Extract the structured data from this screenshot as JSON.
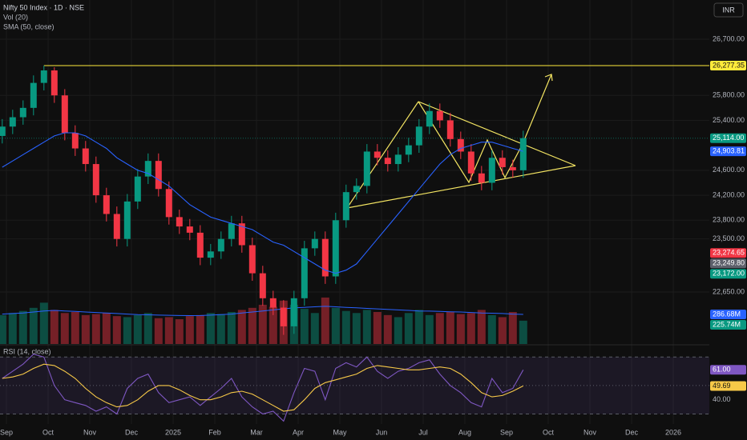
{
  "chart_data": [
    {
      "type": "candlestick",
      "title": "Nifty 50 Index · 1D · NSE",
      "currency": "INR",
      "x": [
        -0.1,
        0.15,
        0.4,
        0.65,
        0.9,
        1.15,
        1.4,
        1.65,
        1.9,
        2.15,
        2.4,
        2.65,
        2.9,
        3.15,
        3.4,
        3.65,
        3.9,
        4.15,
        4.4,
        4.65,
        4.9,
        5.15,
        5.4,
        5.65,
        5.9,
        6.15,
        6.4,
        6.65,
        6.9,
        7.15,
        7.4,
        7.65,
        7.9,
        8.15,
        8.4,
        8.65,
        8.9,
        9.15,
        9.4,
        9.65,
        9.9,
        10.15,
        10.4,
        10.65,
        10.9,
        11.15,
        11.4,
        11.65,
        11.9,
        12.15,
        12.4
      ],
      "open": [
        25150,
        25300,
        25450,
        25600,
        26000,
        26200,
        25800,
        25200,
        24950,
        24700,
        24200,
        23900,
        23500,
        24100,
        24500,
        24750,
        24300,
        23850,
        23700,
        23600,
        23200,
        23300,
        23500,
        23750,
        23400,
        22950,
        22550,
        22400,
        22100,
        22550,
        23350,
        23500,
        22900,
        23800,
        24250,
        24350,
        24900,
        24800,
        24700,
        24850,
        25000,
        25300,
        25550,
        25400,
        25100,
        24900,
        24550,
        24400,
        24800,
        24650,
        24600
      ],
      "high": [
        25420,
        25570,
        25720,
        26120,
        26277,
        26250,
        25900,
        25320,
        25070,
        24820,
        24320,
        24020,
        24220,
        24620,
        24870,
        24870,
        24420,
        23970,
        23820,
        23720,
        23420,
        23620,
        23870,
        23870,
        23520,
        23070,
        22670,
        22520,
        22670,
        23470,
        23620,
        23620,
        23920,
        24370,
        24470,
        25020,
        25020,
        24920,
        24970,
        25120,
        25420,
        25670,
        25670,
        25520,
        25220,
        25020,
        24670,
        24920,
        24920,
        24770,
        25234
      ],
      "low": [
        25030,
        25180,
        25330,
        25480,
        25880,
        25680,
        25080,
        24830,
        24580,
        24080,
        23780,
        23380,
        23380,
        23980,
        24380,
        24180,
        23730,
        23580,
        23480,
        23080,
        23080,
        23180,
        23380,
        23280,
        22830,
        22430,
        22280,
        21964,
        21980,
        22430,
        23230,
        22780,
        22780,
        23680,
        24130,
        24230,
        24680,
        24580,
        24580,
        24730,
        24880,
        25180,
        25280,
        24980,
        24780,
        24430,
        24280,
        24280,
        24530,
        24480,
        24480
      ],
      "close": [
        25300,
        25450,
        25600,
        26000,
        26200,
        25800,
        25200,
        24950,
        24700,
        24200,
        23900,
        23500,
        24100,
        24500,
        24750,
        24300,
        23850,
        23700,
        23600,
        23200,
        23300,
        23500,
        23750,
        23400,
        22950,
        22550,
        22400,
        22100,
        22550,
        23350,
        23500,
        22900,
        23800,
        24250,
        24350,
        24900,
        24800,
        24700,
        24850,
        25000,
        25300,
        25550,
        25400,
        25100,
        24900,
        24550,
        24400,
        24800,
        24650,
        24600,
        25114
      ],
      "up_color": "#089981",
      "down_color": "#f23645",
      "ylim": [
        21817,
        27328
      ],
      "yticks": [
        {
          "value": 26700,
          "label": "26,700.00"
        },
        {
          "value": 25800,
          "label": "25,800.00"
        },
        {
          "value": 25400,
          "label": "25,400.00"
        },
        {
          "value": 24600,
          "label": "24,600.00"
        },
        {
          "value": 24200,
          "label": "24,200.00"
        },
        {
          "value": 23800,
          "label": "23,800.00"
        },
        {
          "value": 23500,
          "label": "23,500.00"
        },
        {
          "value": 22650,
          "label": "22,650.00"
        }
      ],
      "xlim": [
        -0.154,
        16.865
      ],
      "xticks": [
        {
          "value": 0,
          "label": "Sep"
        },
        {
          "value": 1,
          "label": "Oct"
        },
        {
          "value": 2,
          "label": "Nov"
        },
        {
          "value": 3,
          "label": "Dec"
        },
        {
          "value": 4,
          "label": "2025"
        },
        {
          "value": 5,
          "label": "Feb"
        },
        {
          "value": 6,
          "label": "Mar"
        },
        {
          "value": 7,
          "label": "Apr"
        },
        {
          "value": 8,
          "label": "May"
        },
        {
          "value": 9,
          "label": "Jun"
        },
        {
          "value": 10,
          "label": "Jul"
        },
        {
          "value": 11,
          "label": "Aug"
        },
        {
          "value": 12,
          "label": "Sep"
        },
        {
          "value": 13,
          "label": "Oct"
        },
        {
          "value": 14,
          "label": "Nov"
        },
        {
          "value": 15,
          "label": "Dec"
        },
        {
          "value": 16,
          "label": "2026"
        }
      ],
      "grid": true,
      "overlays": [
        {
          "name": "SMA (50, close)",
          "color": "#2962ff",
          "values": [
            24650,
            24750,
            24850,
            24950,
            25050,
            25150,
            25200,
            25200,
            25150,
            25050,
            24950,
            24800,
            24700,
            24600,
            24550,
            24450,
            24350,
            24200,
            24050,
            23950,
            23850,
            23800,
            23750,
            23700,
            23650,
            23550,
            23450,
            23400,
            23300,
            23200,
            23100,
            23000,
            22950,
            23000,
            23100,
            23300,
            23500,
            23700,
            23900,
            24100,
            24300,
            24500,
            24700,
            24850,
            24950,
            25000,
            25050,
            25050,
            25000,
            24950,
            24903.81
          ]
        }
      ],
      "volume": {
        "name": "Vol (20)",
        "y3lim": [
          0,
          1100
        ],
        "values": [
          280,
          300,
          320,
          350,
          400,
          330,
          300,
          310,
          280,
          290,
          300,
          270,
          260,
          280,
          300,
          250,
          260,
          240,
          270,
          280,
          300,
          290,
          310,
          330,
          350,
          380,
          360,
          420,
          380,
          340,
          300,
          450,
          350,
          320,
          300,
          330,
          310,
          280,
          260,
          300,
          330,
          280,
          300,
          310,
          290,
          300,
          330,
          280,
          260,
          310,
          225.74
        ],
        "value_label": "225.74M",
        "ma": [
          290,
          295,
          300,
          310,
          320,
          325,
          320,
          315,
          310,
          305,
          300,
          295,
          290,
          285,
          283,
          280,
          278,
          276,
          275,
          276,
          280,
          285,
          290,
          300,
          310,
          320,
          330,
          340,
          350,
          355,
          360,
          365,
          360,
          355,
          350,
          345,
          340,
          335,
          330,
          325,
          320,
          318,
          315,
          312,
          310,
          305,
          300,
          298,
          295,
          290,
          286.68
        ],
        "ma_label": "286.68M",
        "ma_color": "#2962ff"
      },
      "levels": [
        {
          "value": 26277.35,
          "label": "26,277.35",
          "color": "#ffeb3b"
        }
      ],
      "price_labels": [
        {
          "value": 25114,
          "label": "25,114.00",
          "color": "#089981"
        },
        {
          "value": 24903.81,
          "label": "24,903.81",
          "color": "#2962ff"
        },
        {
          "value": 23274.65,
          "label": "23,274.65",
          "color": "#f23645"
        },
        {
          "value": 23249.8,
          "label": "23,249.80",
          "color": "#5d606b"
        },
        {
          "value": 23172,
          "label": "23,172.00",
          "color": "#089981"
        }
      ]
    },
    {
      "type": "line",
      "title": "RSI (14, close)",
      "series": [
        {
          "color": "#7e57c2",
          "value_label": "61.00",
          "values": [
            55,
            60,
            65,
            72,
            70,
            50,
            40,
            38,
            36,
            32,
            35,
            30,
            48,
            55,
            58,
            45,
            38,
            40,
            42,
            36,
            42,
            48,
            55,
            42,
            35,
            30,
            32,
            25,
            45,
            62,
            60,
            40,
            62,
            66,
            63,
            70,
            60,
            55,
            60,
            62,
            66,
            68,
            58,
            50,
            45,
            38,
            35,
            55,
            45,
            48,
            61
          ]
        },
        {
          "color": "#f7c948",
          "value_label": "49.69",
          "values": [
            55,
            56,
            58,
            62,
            65,
            64,
            60,
            55,
            48,
            42,
            38,
            35,
            36,
            40,
            46,
            50,
            50,
            47,
            43,
            40,
            40,
            42,
            45,
            46,
            44,
            40,
            36,
            32,
            33,
            40,
            48,
            52,
            54,
            56,
            58,
            62,
            64,
            63,
            62,
            61,
            61,
            62,
            63,
            62,
            58,
            52,
            45,
            42,
            43,
            46,
            49.69
          ]
        }
      ],
      "ylim": [
        23,
        78
      ],
      "yticks": [
        {
          "value": 40,
          "label": "40.00"
        }
      ],
      "bands": [
        70,
        50,
        30
      ]
    }
  ]
}
